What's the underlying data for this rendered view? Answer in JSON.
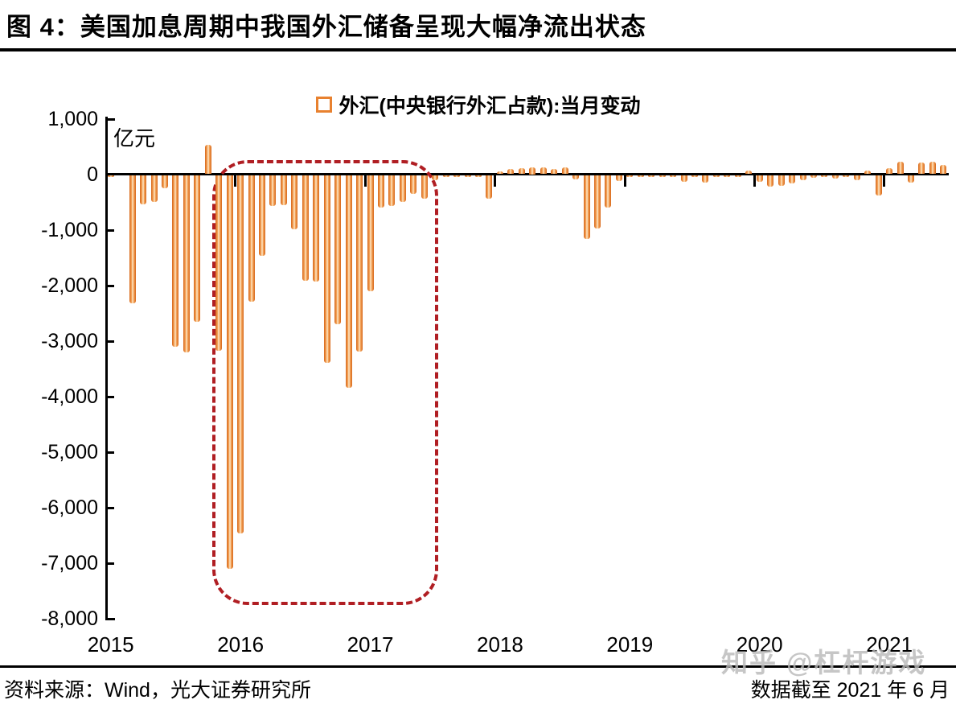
{
  "page": {
    "title": "图 4：美国加息周期中我国外汇储备呈现大幅净流出状态"
  },
  "legend": {
    "label": "外汇(中央银行外汇占款):当月变动"
  },
  "axis": {
    "unit_label": "亿元",
    "y_tick_labels": [
      "1,000",
      "0",
      "-1,000",
      "-2,000",
      "-3,000",
      "-4,000",
      "-5,000",
      "-6,000",
      "-7,000",
      "-8,000"
    ],
    "x_tick_labels": [
      "2015",
      "2016",
      "2017",
      "2018",
      "2019",
      "2020",
      "2021"
    ]
  },
  "footer": {
    "source": "资料来源：Wind，光大证券研究所",
    "note": "数据截至 2021 年 6 月"
  },
  "watermark": {
    "text": "知乎 @杠杆游戏"
  },
  "colors": {
    "bar_edge": "#DC7226",
    "bar_fill": "#F2A158",
    "bar_center_stripe": "#FAD2A5",
    "highlight_box": "#B01E23",
    "axis": "#000000",
    "watermark": "#B9B9B9"
  },
  "chart_data": {
    "type": "bar",
    "title": "外汇(中央银行外汇占款):当月变动",
    "unit": "亿元",
    "x_start": "2015-01",
    "x_end": "2021-06",
    "ylim": [
      -8000,
      1000
    ],
    "y_tick_step": 1000,
    "grid": false,
    "legend_position": "top-center",
    "series": [
      {
        "name": "外汇(中央银行外汇占款):当月变动",
        "values_by_year": {
          "2015": [
            -15,
            10,
            -2307,
            -520,
            -480,
            -230,
            -3080,
            -3184,
            -2641,
            533,
            -3158,
            -7082
          ],
          "2016": [
            -6445,
            -2279,
            -1448,
            -544,
            -537,
            -977,
            -1905,
            -1919,
            -3375,
            -2678,
            -3827,
            -3178
          ],
          "2017": [
            -2088,
            -581,
            -547,
            -473,
            -328,
            -425,
            -87,
            -32,
            -15,
            -12,
            -15,
            -420
          ],
          "2018": [
            55,
            95,
            115,
            125,
            120,
            100,
            130,
            -70,
            -1150,
            -950,
            -580,
            -100
          ],
          "2019": [
            -20,
            -25,
            -20,
            -15,
            -20,
            -120,
            -25,
            -130,
            -25,
            -25,
            -20,
            58
          ],
          "2020": [
            -120,
            -210,
            -190,
            -145,
            -90,
            -40,
            -25,
            -60,
            -35,
            -85,
            70,
            -360
          ],
          "2021": [
            105,
            230,
            -135,
            215,
            230,
            170
          ]
        }
      }
    ],
    "annotations": [
      {
        "type": "dashed-rounded-rect",
        "label": "highlight of large net outflows during US rate-hike cycle",
        "from_month": "2015-11",
        "to_month": "2017-06",
        "value_top": 250,
        "value_bottom": -7650,
        "color": "#B01E23"
      }
    ]
  }
}
